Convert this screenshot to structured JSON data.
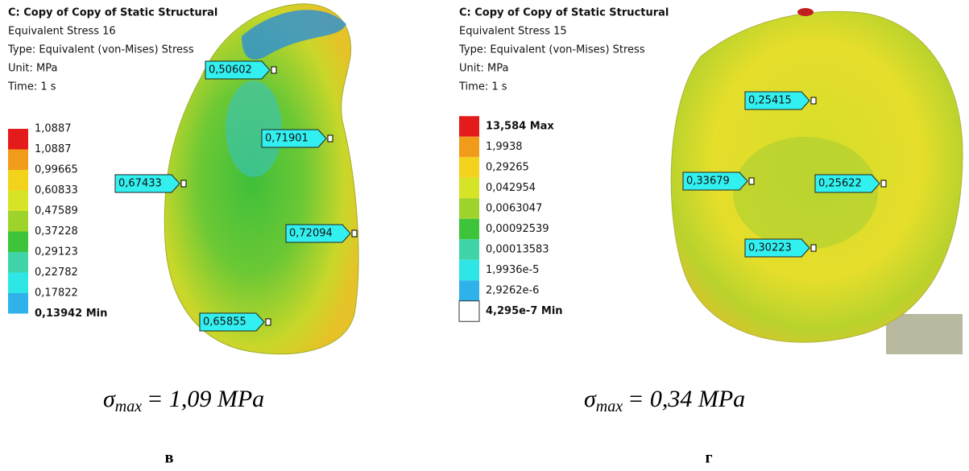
{
  "panels": [
    {
      "header": {
        "title": "C: Copy of Copy of Static Structural",
        "result": "Equivalent Stress 16",
        "type": "Type: Equivalent (von-Mises) Stress",
        "unit": "Unit: MPa",
        "time": "Time: 1 s"
      },
      "legend": [
        "1,0887",
        "1,0887",
        "0,99665",
        "0,60833",
        "0,47589",
        "0,37228",
        "0,29123",
        "0,22782",
        "0,17822",
        "0,13942 Min"
      ],
      "probes": [
        "0,50602",
        "0,71901",
        "0,67433",
        "0,72094",
        "0,65855"
      ],
      "formula": {
        "symbol": "σ",
        "subscript": "max",
        "rest": "= 1,09  MPa"
      },
      "letter": "в"
    },
    {
      "header": {
        "title": "C: Copy of Copy of Static Structural",
        "result": "Equivalent Stress 15",
        "type": "Type: Equivalent (von-Mises) Stress",
        "unit": "Unit: MPa",
        "time": "Time: 1 s"
      },
      "legend": [
        "13,584 Max",
        "1,9938",
        "0,29265",
        "0,042954",
        "0,0063047",
        "0,00092539",
        "0,00013583",
        "1,9936e-5",
        "2,9262e-6",
        "4,295e-7 Min"
      ],
      "probes": [
        "0,25415",
        "0,33679",
        "0,25622",
        "0,30223"
      ],
      "formula": {
        "symbol": "σ",
        "subscript": "max",
        "rest": "= 0,34  MPa"
      },
      "letter": "г"
    }
  ]
}
